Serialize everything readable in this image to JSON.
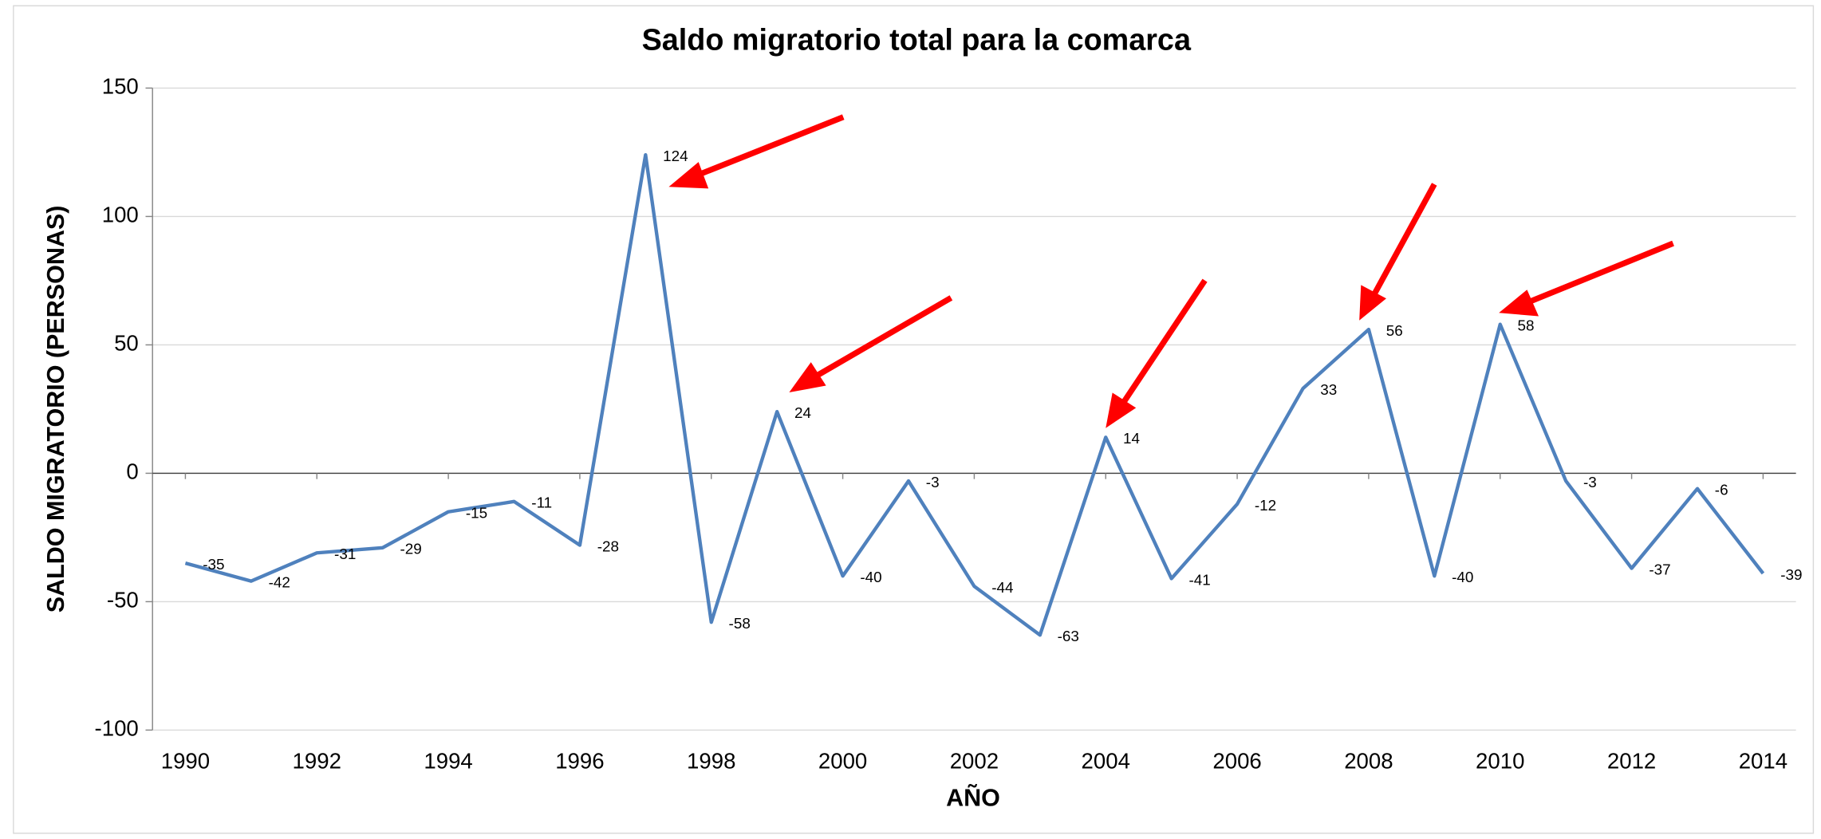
{
  "chart_data": {
    "type": "line",
    "title": "Saldo migratorio total para la comarca",
    "x_label": "AÑO",
    "y_label": "SALDO MIGRATORIO (PERSONAS)",
    "x": [
      1990,
      1991,
      1992,
      1993,
      1994,
      1995,
      1996,
      1997,
      1998,
      1999,
      2000,
      2001,
      2002,
      2003,
      2004,
      2005,
      2006,
      2007,
      2008,
      2009,
      2010,
      2011,
      2012,
      2013,
      2014
    ],
    "series": [
      {
        "name": "Saldo migratorio",
        "color": "#4f81bd",
        "values": [
          -35,
          -42,
          -31,
          -29,
          -15,
          -11,
          -28,
          124,
          -58,
          24,
          -40,
          -3,
          -44,
          -63,
          14,
          -41,
          -12,
          33,
          56,
          -40,
          58,
          -3,
          -37,
          -6,
          -39
        ]
      }
    ],
    "xlim": [
      1989.5,
      2014.5
    ],
    "xticks": [
      1990,
      1992,
      1994,
      1996,
      1998,
      2000,
      2002,
      2004,
      2006,
      2008,
      2010,
      2012,
      2014
    ],
    "ylim": [
      -100,
      150
    ],
    "yticks": [
      -100,
      -50,
      0,
      50,
      100,
      150
    ],
    "grid": true,
    "label_colors": {
      "positive": "#404040",
      "negative": "#ff0000"
    }
  }
}
